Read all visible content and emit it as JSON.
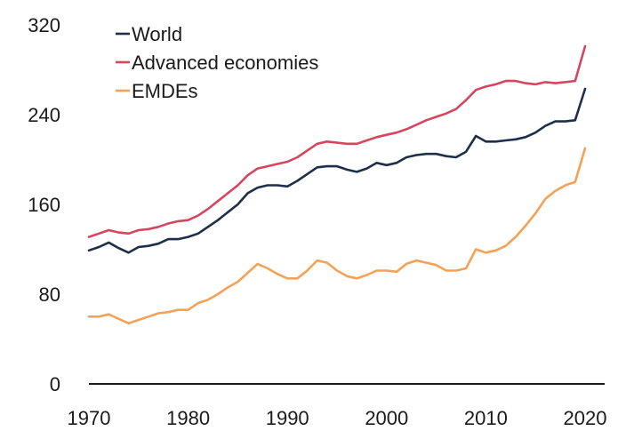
{
  "chart_data": {
    "type": "line",
    "title": "",
    "xlabel": "",
    "ylabel": "",
    "xlim": [
      1970,
      2020
    ],
    "ylim": [
      0,
      320
    ],
    "x_ticks": [
      "1970",
      "1980",
      "1990",
      "2000",
      "2010",
      "2020"
    ],
    "y_ticks": [
      "0",
      "80",
      "160",
      "240",
      "320"
    ],
    "grid": false,
    "legend_position": "top-left",
    "x": [
      1970,
      1971,
      1972,
      1973,
      1974,
      1975,
      1976,
      1977,
      1978,
      1979,
      1980,
      1981,
      1982,
      1983,
      1984,
      1985,
      1986,
      1987,
      1988,
      1989,
      1990,
      1991,
      1992,
      1993,
      1994,
      1995,
      1996,
      1997,
      1998,
      1999,
      2000,
      2001,
      2002,
      2003,
      2004,
      2005,
      2006,
      2007,
      2008,
      2009,
      2010,
      2011,
      2012,
      2013,
      2014,
      2015,
      2016,
      2017,
      2018,
      2019,
      2020
    ],
    "series": [
      {
        "name": "World",
        "color": "#1f2f4a",
        "values": [
          119,
          122,
          126,
          121,
          117,
          122,
          123,
          125,
          129,
          129,
          131,
          134,
          140,
          146,
          153,
          160,
          170,
          175,
          177,
          177,
          176,
          181,
          187,
          193,
          194,
          194,
          191,
          189,
          192,
          197,
          195,
          197,
          202,
          204,
          205,
          205,
          203,
          202,
          207,
          221,
          216,
          216,
          217,
          218,
          220,
          224,
          230,
          234,
          234,
          235,
          263
        ]
      },
      {
        "name": "Advanced economies",
        "color": "#d6465e",
        "values": [
          131,
          134,
          137,
          135,
          134,
          137,
          138,
          140,
          143,
          145,
          146,
          150,
          156,
          163,
          170,
          177,
          186,
          192,
          194,
          196,
          198,
          202,
          208,
          214,
          216,
          215,
          214,
          214,
          217,
          220,
          222,
          224,
          227,
          231,
          235,
          238,
          241,
          245,
          253,
          262,
          265,
          267,
          270,
          270,
          268,
          267,
          269,
          268,
          269,
          270,
          301
        ]
      },
      {
        "name": "EMDEs",
        "color": "#f4a256",
        "values": [
          60,
          60,
          62,
          58,
          54,
          57,
          60,
          63,
          64,
          66,
          66,
          72,
          75,
          80,
          86,
          91,
          99,
          107,
          103,
          98,
          94,
          94,
          101,
          110,
          108,
          101,
          96,
          94,
          97,
          101,
          101,
          100,
          107,
          110,
          108,
          106,
          101,
          101,
          103,
          120,
          117,
          119,
          123,
          131,
          141,
          152,
          165,
          172,
          177,
          180,
          210
        ]
      }
    ]
  }
}
